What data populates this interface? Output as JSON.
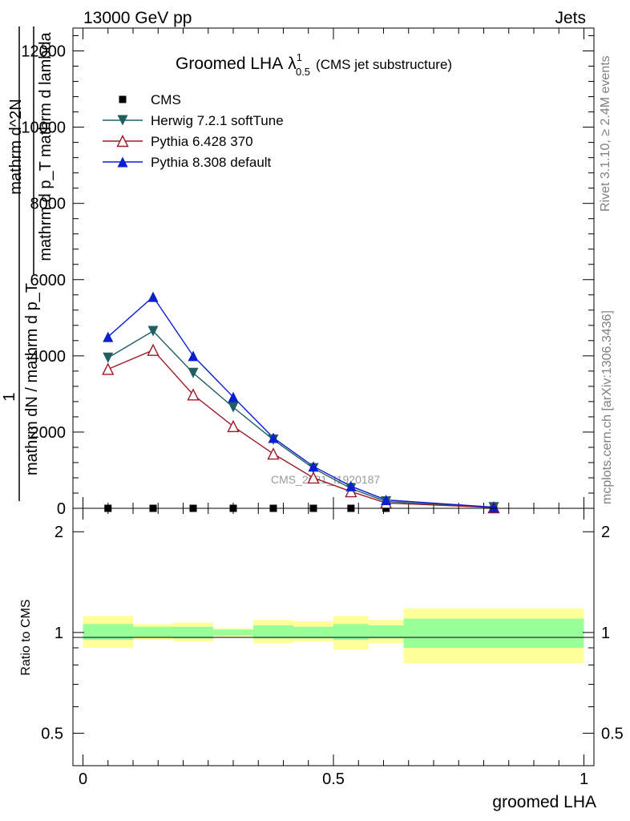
{
  "header": {
    "left": "13000 GeV pp",
    "right": "Jets"
  },
  "title": {
    "main": "Groomed LHA",
    "lambda": "λ",
    "sup": "1",
    "sub": "0.5",
    "suffix": "(CMS jet substructure)"
  },
  "side_text": {
    "rivet": "Rivet 3.1.10, ≥ 2.4M events",
    "mcplots": "mcplots.cern.ch [arXiv:1306.3436]"
  },
  "watermark": "CMS_2021_I1920187",
  "ylabel": {
    "one": "1",
    "num": "mathrm d^2N",
    "den1": "mathrm dN / mathrm d p_T",
    "den2": "mathrm d p_T mathrm d lambda"
  },
  "ratio_ylabel": "Ratio to CMS",
  "xlabel": "groomed LHA",
  "chart_data": {
    "type": "line",
    "title": "Groomed LHA λ¹₀.₅ (CMS jet substructure)",
    "xlabel": "groomed LHA",
    "ylabel": "1/(mathrm dN / mathrm d p_T) mathrm d^2N/(mathrm d p_T mathrm d lambda)",
    "xlim": [
      -0.02,
      1.02
    ],
    "ylim": [
      0,
      12600
    ],
    "x_ticks": [
      "0",
      "0.5",
      "1"
    ],
    "y_ticks": [
      "0",
      "2000",
      "4000",
      "6000",
      "8000",
      "10000",
      "12000"
    ],
    "legend_position": "top-left",
    "series": [
      {
        "name": "CMS",
        "marker": "square",
        "color": "#000000",
        "x": [
          0.05,
          0.14,
          0.22,
          0.3,
          0.38,
          0.46,
          0.535,
          0.605,
          0.82
        ],
        "y": [
          0,
          0,
          0,
          0,
          0,
          0,
          0,
          0,
          0
        ]
      },
      {
        "name": "Herwig 7.2.1 softTune",
        "marker": "triangle-down",
        "color": "#1f5f63",
        "x": [
          0.05,
          0.14,
          0.22,
          0.3,
          0.38,
          0.46,
          0.535,
          0.605,
          0.82
        ],
        "y": [
          3950,
          4650,
          3550,
          2650,
          1800,
          1050,
          520,
          180,
          25
        ]
      },
      {
        "name": "Pythia 6.428 370",
        "marker": "triangle-up-open",
        "color": "#9b1b25",
        "x": [
          0.05,
          0.14,
          0.22,
          0.3,
          0.38,
          0.46,
          0.535,
          0.605,
          0.82
        ],
        "y": [
          3650,
          4150,
          2980,
          2150,
          1430,
          800,
          440,
          140,
          20
        ]
      },
      {
        "name": "Pythia 8.308 default",
        "marker": "triangle-up",
        "color": "#0a1fd0",
        "x": [
          0.05,
          0.14,
          0.22,
          0.3,
          0.38,
          0.46,
          0.535,
          0.605,
          0.82
        ],
        "y": [
          4500,
          5550,
          4000,
          2920,
          1850,
          1100,
          580,
          220,
          30
        ]
      }
    ],
    "ratio": {
      "ylabel": "Ratio to CMS",
      "y_ticks": [
        "0.5",
        "1",
        "2"
      ],
      "ylim": [
        0.4,
        2.35
      ],
      "bins": [
        {
          "lo": 0.0,
          "hi": 0.1,
          "stat": [
            0.95,
            1.06
          ],
          "total": [
            0.9,
            1.12
          ]
        },
        {
          "lo": 0.1,
          "hi": 0.18,
          "stat": [
            0.97,
            1.04
          ],
          "total": [
            0.95,
            1.06
          ]
        },
        {
          "lo": 0.18,
          "hi": 0.26,
          "stat": [
            0.96,
            1.04
          ],
          "total": [
            0.94,
            1.07
          ]
        },
        {
          "lo": 0.26,
          "hi": 0.34,
          "stat": [
            0.98,
            1.02
          ],
          "total": [
            0.97,
            1.03
          ]
        },
        {
          "lo": 0.34,
          "hi": 0.42,
          "stat": [
            0.96,
            1.05
          ],
          "total": [
            0.93,
            1.09
          ]
        },
        {
          "lo": 0.42,
          "hi": 0.5,
          "stat": [
            0.96,
            1.04
          ],
          "total": [
            0.94,
            1.08
          ]
        },
        {
          "lo": 0.5,
          "hi": 0.57,
          "stat": [
            0.95,
            1.06
          ],
          "total": [
            0.89,
            1.12
          ]
        },
        {
          "lo": 0.57,
          "hi": 0.64,
          "stat": [
            0.96,
            1.05
          ],
          "total": [
            0.93,
            1.09
          ]
        },
        {
          "lo": 0.64,
          "hi": 1.0,
          "stat": [
            0.9,
            1.1
          ],
          "total": [
            0.81,
            1.18
          ]
        }
      ]
    }
  },
  "colors": {
    "stat_band": "#99ff99",
    "total_band": "#ffff99"
  }
}
